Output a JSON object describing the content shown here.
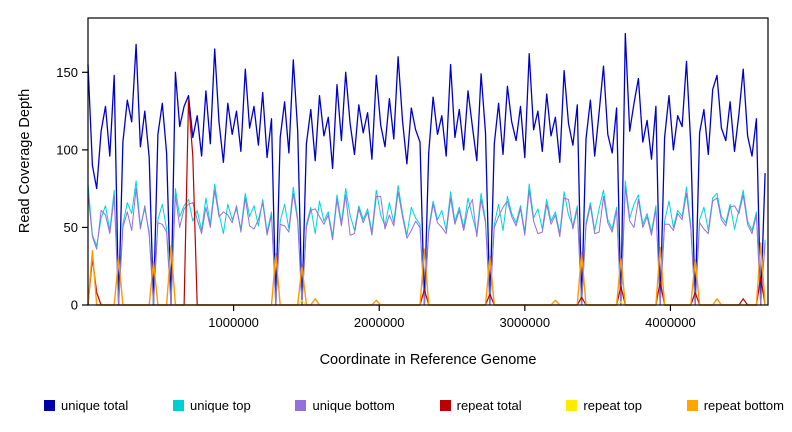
{
  "chart_data": {
    "type": "line",
    "title": "",
    "xlabel": "Coordinate in Reference Genome",
    "ylabel": "Read Coverage Depth",
    "xlim": [
      0,
      4670000
    ],
    "ylim": [
      0,
      185
    ],
    "grid": false,
    "x_ticks": [
      1000000,
      2000000,
      3000000,
      4000000
    ],
    "x_tick_labels": [
      "1000000",
      "2000000",
      "3000000",
      "4000000"
    ],
    "y_ticks": [
      0,
      50,
      100,
      150
    ],
    "y_tick_labels": [
      "0",
      "50",
      "100",
      "150"
    ],
    "x_start": 0,
    "x_step": 30000,
    "n_points": 156,
    "series": [
      {
        "name": "unique total",
        "color": "#0000CC",
        "width": 1.3,
        "values": [
          155,
          90,
          75,
          112,
          128,
          96,
          148,
          0,
          105,
          132,
          118,
          168,
          102,
          125,
          95,
          0,
          110,
          130,
          98,
          0,
          150,
          115,
          128,
          135,
          108,
          122,
          96,
          138,
          104,
          165,
          118,
          92,
          130,
          110,
          125,
          99,
          152,
          114,
          128,
          103,
          137,
          95,
          120,
          0,
          108,
          131,
          98,
          158,
          112,
          0,
          104,
          126,
          93,
          135,
          109,
          121,
          88,
          142,
          106,
          150,
          117,
          97,
          129,
          111,
          124,
          94,
          148,
          116,
          102,
          133,
          107,
          160,
          119,
          91,
          127,
          113,
          105,
          0,
          98,
          134,
          110,
          122,
          96,
          155,
          108,
          126,
          100,
          138,
          115,
          93,
          149,
          111,
          0,
          104,
          130,
          97,
          141,
          118,
          106,
          128,
          95,
          162,
          113,
          125,
          99,
          136,
          109,
          121,
          92,
          151,
          117,
          103,
          129,
          0,
          107,
          132,
          96,
          124,
          154,
          110,
          98,
          127,
          0,
          175,
          112,
          130,
          146,
          105,
          119,
          94,
          128,
          0,
          108,
          135,
          100,
          122,
          115,
          157,
          103,
          0,
          111,
          126,
          97,
          139,
          148,
          114,
          106,
          131,
          99,
          123,
          152,
          109,
          96,
          120,
          0,
          85
        ]
      },
      {
        "name": "unique top",
        "color": "#00D2DC",
        "width": 1,
        "values": [
          78,
          45,
          38,
          56,
          64,
          48,
          74,
          0,
          52,
          66,
          59,
          80,
          51,
          62,
          47,
          0,
          55,
          65,
          49,
          0,
          75,
          57,
          64,
          68,
          54,
          61,
          48,
          69,
          52,
          78,
          59,
          46,
          65,
          55,
          62,
          49,
          72,
          57,
          64,
          51,
          68,
          47,
          60,
          0,
          54,
          65,
          49,
          76,
          56,
          0,
          52,
          63,
          46,
          67,
          54,
          60,
          44,
          71,
          53,
          75,
          58,
          48,
          64,
          55,
          62,
          47,
          74,
          58,
          51,
          66,
          53,
          77,
          59,
          45,
          63,
          56,
          52,
          0,
          49,
          67,
          55,
          61,
          48,
          73,
          54,
          63,
          50,
          69,
          57,
          46,
          72,
          55,
          0,
          52,
          65,
          48,
          70,
          59,
          53,
          64,
          47,
          78,
          56,
          62,
          49,
          68,
          54,
          60,
          46,
          73,
          58,
          51,
          64,
          0,
          53,
          66,
          48,
          62,
          74,
          55,
          49,
          63,
          0,
          80,
          56,
          65,
          71,
          52,
          59,
          47,
          64,
          0,
          54,
          67,
          50,
          61,
          57,
          76,
          51,
          0,
          55,
          63,
          48,
          69,
          72,
          57,
          53,
          65,
          49,
          61,
          74,
          54,
          48,
          60,
          0,
          42
        ]
      },
      {
        "name": "unique bottom",
        "color": "#9370DB",
        "width": 1,
        "values": [
          72,
          44,
          36,
          61,
          58,
          46,
          70,
          0,
          50,
          60,
          48,
          75,
          49,
          64,
          45,
          0,
          53,
          52,
          47,
          0,
          71,
          50,
          62,
          65,
          66,
          55,
          46,
          63,
          50,
          74,
          57,
          60,
          58,
          53,
          64,
          47,
          69,
          51,
          49,
          55,
          66,
          45,
          58,
          0,
          52,
          51,
          47,
          72,
          54,
          0,
          50,
          61,
          62,
          57,
          52,
          58,
          42,
          68,
          51,
          71,
          45,
          46,
          62,
          53,
          60,
          45,
          70,
          70,
          49,
          58,
          51,
          73,
          57,
          43,
          48,
          54,
          50,
          0,
          47,
          65,
          53,
          50,
          46,
          69,
          52,
          61,
          48,
          62,
          68,
          44,
          68,
          53,
          0,
          50,
          57,
          63,
          67,
          57,
          51,
          62,
          45,
          74,
          54,
          46,
          47,
          65,
          52,
          58,
          44,
          69,
          68,
          49,
          62,
          0,
          51,
          64,
          46,
          47,
          70,
          53,
          47,
          61,
          0,
          76,
          54,
          50,
          68,
          50,
          57,
          45,
          62,
          0,
          52,
          52,
          48,
          59,
          55,
          72,
          49,
          0,
          53,
          49,
          46,
          67,
          69,
          55,
          51,
          63,
          64,
          59,
          71,
          52,
          46,
          58,
          0,
          40
        ]
      },
      {
        "name": "repeat total",
        "color": "#BB0000",
        "width": 1.2,
        "default": 0,
        "spikes": [
          [
            1,
            30
          ],
          [
            2,
            8
          ],
          [
            23,
            132
          ],
          [
            24,
            96
          ],
          [
            77,
            10
          ],
          [
            92,
            7
          ],
          [
            113,
            5
          ],
          [
            122,
            12
          ],
          [
            131,
            15
          ],
          [
            139,
            8
          ],
          [
            150,
            4
          ],
          [
            154,
            18
          ]
        ]
      },
      {
        "name": "repeat top",
        "color": "#FFEB00",
        "width": 1,
        "default": 0,
        "spikes": [
          [
            49,
            3
          ],
          [
            122,
            2
          ]
        ]
      },
      {
        "name": "repeat bottom",
        "color": "#FF9900",
        "width": 1.4,
        "default": 0,
        "spikes": [
          [
            1,
            35
          ],
          [
            7,
            30
          ],
          [
            15,
            28
          ],
          [
            19,
            38
          ],
          [
            43,
            33
          ],
          [
            49,
            25
          ],
          [
            52,
            4
          ],
          [
            66,
            3
          ],
          [
            77,
            36
          ],
          [
            92,
            31
          ],
          [
            107,
            3
          ],
          [
            113,
            34
          ],
          [
            122,
            30
          ],
          [
            131,
            37
          ],
          [
            139,
            29
          ],
          [
            144,
            4
          ],
          [
            154,
            40
          ]
        ]
      }
    ],
    "legend": {
      "position": "bottom",
      "entries": [
        {
          "label": "unique total",
          "color": "#0000A8"
        },
        {
          "label": "unique top",
          "color": "#00CED1"
        },
        {
          "label": "unique bottom",
          "color": "#9370DB"
        },
        {
          "label": "repeat total",
          "color": "#BB0000"
        },
        {
          "label": "repeat top",
          "color": "#FFEB00"
        },
        {
          "label": "repeat bottom",
          "color": "#FFA500"
        }
      ]
    }
  }
}
